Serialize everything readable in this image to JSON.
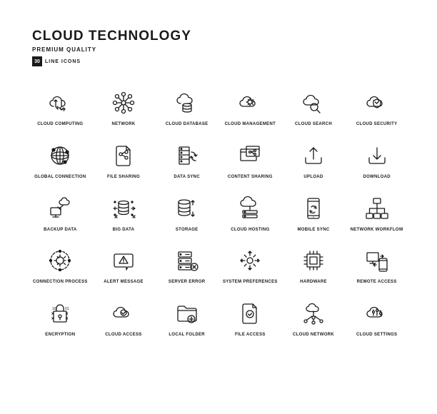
{
  "header": {
    "title": "CLOUD TECHNOLOGY",
    "subtitle": "PREMIUM QUALITY",
    "count": "30",
    "count_label": "LINE ICONS"
  },
  "style": {
    "stroke": "#1a1a1a",
    "stroke_width": 1.3,
    "bg": "#ffffff",
    "label_fontsize": 6,
    "title_fontsize": 19,
    "grid_cols": 6,
    "grid_rows": 5
  },
  "icons": [
    {
      "name": "cloud-computing-icon",
      "label": "CLOUD COMPUTING"
    },
    {
      "name": "network-icon",
      "label": "NETWORK"
    },
    {
      "name": "cloud-database-icon",
      "label": "CLOUD DATABASE"
    },
    {
      "name": "cloud-management-icon",
      "label": "CLOUD\nMANAGEMENT"
    },
    {
      "name": "cloud-search-icon",
      "label": "CLOUD SEARCH"
    },
    {
      "name": "cloud-security-icon",
      "label": "CLOUD SECURITY"
    },
    {
      "name": "global-connection-icon",
      "label": "GLOBAL CONNECTION"
    },
    {
      "name": "file-sharing-icon",
      "label": "FILE SHARING"
    },
    {
      "name": "data-sync-icon",
      "label": "DATA SYNC"
    },
    {
      "name": "content-sharing-icon",
      "label": "CONTENT SHARING"
    },
    {
      "name": "upload-icon",
      "label": "UPLOAD"
    },
    {
      "name": "download-icon",
      "label": "DOWNLOAD"
    },
    {
      "name": "backup-data-icon",
      "label": "BACKUP DATA"
    },
    {
      "name": "big-data-icon",
      "label": "BIG DATA"
    },
    {
      "name": "storage-icon",
      "label": "STORAGE"
    },
    {
      "name": "cloud-hosting-icon",
      "label": "CLOUD HOSTING"
    },
    {
      "name": "mobile-sync-icon",
      "label": "MOBILE SYNC"
    },
    {
      "name": "network-workflow-icon",
      "label": "NETWORK WORKFLOW"
    },
    {
      "name": "connection-process-icon",
      "label": "CONNECTION\nPROCESS"
    },
    {
      "name": "alert-message-icon",
      "label": "ALERT MESSAGE"
    },
    {
      "name": "server-error-icon",
      "label": "SERVER ERROR"
    },
    {
      "name": "system-preferences-icon",
      "label": "SYSTEM\nPREFERENCES"
    },
    {
      "name": "hardware-icon",
      "label": "HARDWARE"
    },
    {
      "name": "remote-access-icon",
      "label": "REMOTE ACCESS"
    },
    {
      "name": "encryption-icon",
      "label": "ENCRYPTION"
    },
    {
      "name": "cloud-access-icon",
      "label": "CLOUD ACCESS"
    },
    {
      "name": "local-folder-icon",
      "label": "LOCAL FOLDER"
    },
    {
      "name": "file-access-icon",
      "label": "FILE ACCESS"
    },
    {
      "name": "cloud-network-icon",
      "label": "CLOUD NETWORK"
    },
    {
      "name": "cloud-settings-icon",
      "label": "CLOUD SETTINGS"
    }
  ]
}
